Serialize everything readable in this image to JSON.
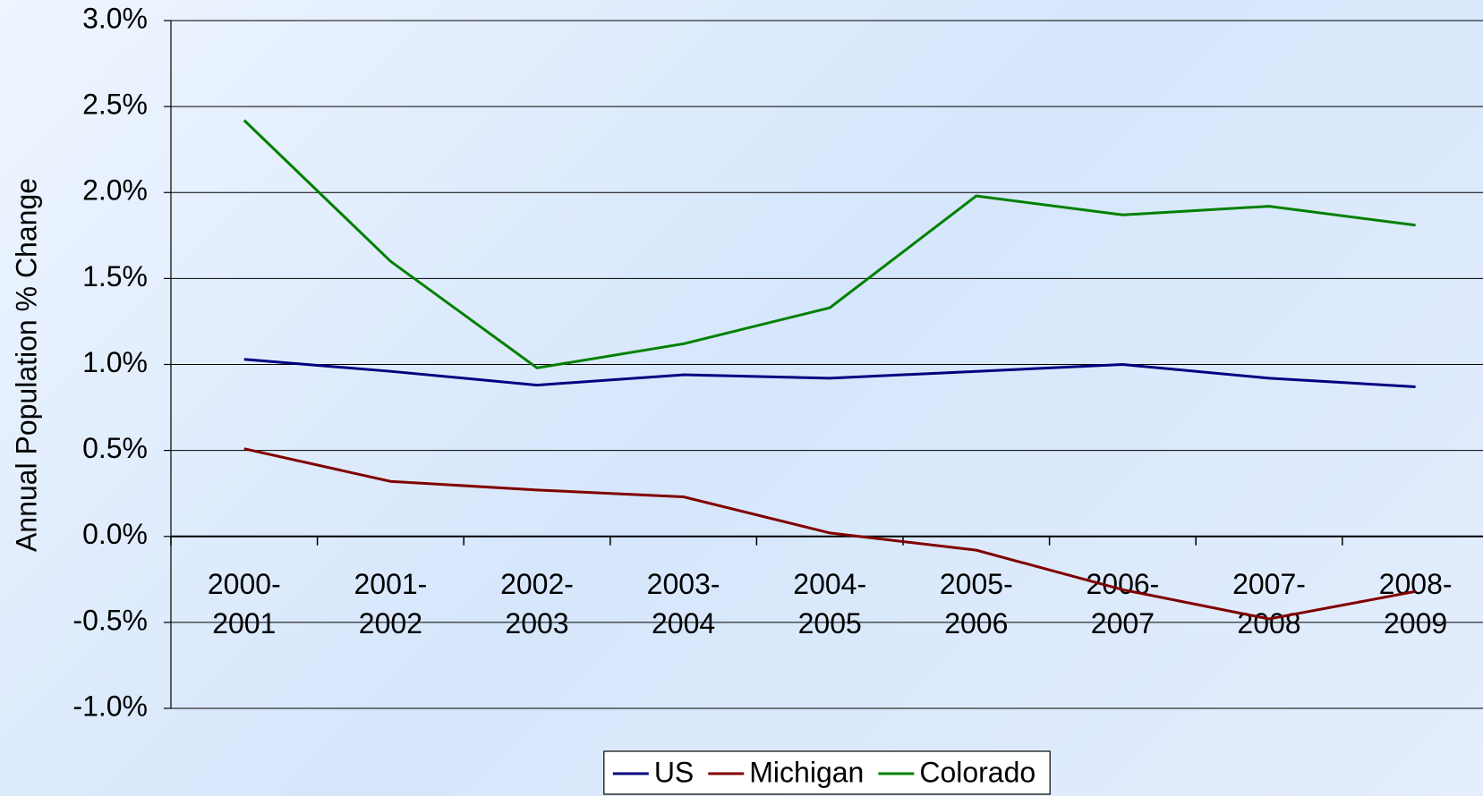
{
  "chart_data": {
    "type": "line",
    "y_label": "Annual Population % Change",
    "categories": [
      "2000-2001",
      "2001-2002",
      "2002-2003",
      "2003-2004",
      "2004-2005",
      "2005-2006",
      "2006-2007",
      "2007-2008",
      "2008-2009"
    ],
    "series": [
      {
        "name": "US",
        "color": "#000080",
        "values": [
          1.03,
          0.96,
          0.88,
          0.94,
          0.92,
          0.96,
          1.0,
          0.92,
          0.87
        ]
      },
      {
        "name": "Michigan",
        "color": "#800000",
        "values": [
          0.51,
          0.32,
          0.27,
          0.23,
          0.02,
          -0.08,
          -0.31,
          -0.48,
          -0.32
        ]
      },
      {
        "name": "Colorado",
        "color": "#008000",
        "values": [
          2.42,
          1.6,
          0.98,
          1.12,
          1.33,
          1.98,
          1.87,
          1.92,
          1.81
        ]
      }
    ],
    "ylim": [
      -1.0,
      3.0
    ],
    "yticks": [
      {
        "value": -1.0,
        "label": "-1.0%"
      },
      {
        "value": -0.5,
        "label": "-0.5%"
      },
      {
        "value": 0,
        "label": "0.0%"
      },
      {
        "value": 0.5,
        "label": "0.5%"
      },
      {
        "value": 1.0,
        "label": "1.0%"
      },
      {
        "value": 1.5,
        "label": "1.5%"
      },
      {
        "value": 2.0,
        "label": "2.0%"
      },
      {
        "value": 2.5,
        "label": "2.5%"
      },
      {
        "value": 3.0,
        "label": "3.0%"
      }
    ],
    "grid": true,
    "legend": "bottom"
  }
}
